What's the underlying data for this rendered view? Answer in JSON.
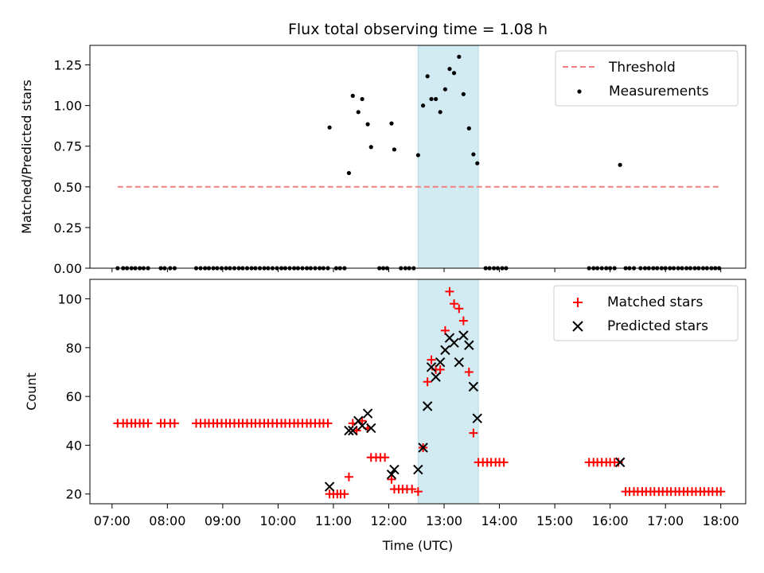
{
  "chart_data": [
    {
      "type": "scatter",
      "title": "Flux total observing time = 1.08 h",
      "xlabel": "",
      "ylabel": "Matched/Predicted stars",
      "ylim": [
        0,
        1.37
      ],
      "yticks": [
        0.0,
        0.25,
        0.5,
        0.75,
        1.0,
        1.25
      ],
      "ytick_labels": [
        "0.00",
        "0.25",
        "0.50",
        "0.75",
        "1.00",
        "1.25"
      ],
      "threshold": {
        "name": "Threshold",
        "value": 0.5,
        "x_range": [
          7.1,
          18.0
        ],
        "color": "#f08080"
      },
      "shaded_interval": {
        "x_range": [
          12.53,
          13.62
        ],
        "color": "#add8e6"
      },
      "legend": {
        "placement": "top-right",
        "entries": [
          "Threshold",
          "Measurements"
        ]
      },
      "series": [
        {
          "name": "Measurements",
          "color": "#000000",
          "points": [
            [
              7.1,
              0
            ],
            [
              7.2,
              0
            ],
            [
              7.27,
              0
            ],
            [
              7.35,
              0
            ],
            [
              7.42,
              0
            ],
            [
              7.5,
              0
            ],
            [
              7.57,
              0
            ],
            [
              7.65,
              0
            ],
            [
              7.88,
              0
            ],
            [
              7.95,
              0
            ],
            [
              8.05,
              0
            ],
            [
              8.13,
              0
            ],
            [
              8.52,
              0
            ],
            [
              8.6,
              0
            ],
            [
              8.68,
              0
            ],
            [
              8.75,
              0
            ],
            [
              8.83,
              0
            ],
            [
              8.9,
              0
            ],
            [
              8.98,
              0
            ],
            [
              9.06,
              0
            ],
            [
              9.13,
              0
            ],
            [
              9.21,
              0
            ],
            [
              9.29,
              0
            ],
            [
              9.36,
              0
            ],
            [
              9.44,
              0
            ],
            [
              9.52,
              0
            ],
            [
              9.59,
              0
            ],
            [
              9.67,
              0
            ],
            [
              9.75,
              0
            ],
            [
              9.82,
              0
            ],
            [
              9.9,
              0
            ],
            [
              9.98,
              0
            ],
            [
              10.06,
              0
            ],
            [
              10.13,
              0
            ],
            [
              10.21,
              0
            ],
            [
              10.29,
              0
            ],
            [
              10.36,
              0
            ],
            [
              10.44,
              0
            ],
            [
              10.52,
              0
            ],
            [
              10.59,
              0
            ],
            [
              10.67,
              0
            ],
            [
              10.75,
              0
            ],
            [
              10.82,
              0
            ],
            [
              10.9,
              0
            ],
            [
              11.05,
              0
            ],
            [
              11.12,
              0
            ],
            [
              11.2,
              0
            ],
            [
              11.83,
              0
            ],
            [
              11.9,
              0
            ],
            [
              11.97,
              0
            ],
            [
              12.22,
              0
            ],
            [
              12.3,
              0
            ],
            [
              12.37,
              0
            ],
            [
              12.45,
              0
            ],
            [
              10.93,
              0.865
            ],
            [
              11.28,
              0.585
            ],
            [
              11.35,
              1.06
            ],
            [
              11.45,
              0.96
            ],
            [
              11.52,
              1.04
            ],
            [
              11.62,
              0.885
            ],
            [
              11.68,
              0.745
            ],
            [
              12.05,
              0.89
            ],
            [
              12.1,
              0.73
            ],
            [
              12.53,
              0.695
            ],
            [
              12.62,
              1.0
            ],
            [
              12.7,
              1.18
            ],
            [
              12.77,
              1.04
            ],
            [
              12.85,
              1.04
            ],
            [
              12.93,
              0.96
            ],
            [
              13.02,
              1.1
            ],
            [
              13.1,
              1.225
            ],
            [
              13.18,
              1.2
            ],
            [
              13.27,
              1.3
            ],
            [
              13.35,
              1.07
            ],
            [
              13.45,
              0.86
            ],
            [
              13.53,
              0.7
            ],
            [
              13.6,
              0.645
            ],
            [
              13.75,
              0
            ],
            [
              13.82,
              0
            ],
            [
              13.9,
              0
            ],
            [
              13.97,
              0
            ],
            [
              14.05,
              0
            ],
            [
              14.12,
              0
            ],
            [
              15.62,
              0
            ],
            [
              15.7,
              0
            ],
            [
              15.77,
              0
            ],
            [
              15.85,
              0
            ],
            [
              15.93,
              0
            ],
            [
              16.0,
              0
            ],
            [
              16.08,
              0
            ],
            [
              16.18,
              0.635
            ],
            [
              16.28,
              0
            ],
            [
              16.35,
              0
            ],
            [
              16.43,
              0
            ],
            [
              16.55,
              0
            ],
            [
              16.63,
              0
            ],
            [
              16.7,
              0
            ],
            [
              16.78,
              0
            ],
            [
              16.85,
              0
            ],
            [
              16.93,
              0
            ],
            [
              17.0,
              0
            ],
            [
              17.08,
              0
            ],
            [
              17.15,
              0
            ],
            [
              17.23,
              0
            ],
            [
              17.3,
              0
            ],
            [
              17.38,
              0
            ],
            [
              17.45,
              0
            ],
            [
              17.53,
              0
            ],
            [
              17.6,
              0
            ],
            [
              17.68,
              0
            ],
            [
              17.75,
              0
            ],
            [
              17.83,
              0
            ],
            [
              17.9,
              0
            ],
            [
              17.97,
              0
            ]
          ]
        }
      ]
    },
    {
      "type": "scatter",
      "title": "",
      "xlabel": "Time (UTC)",
      "ylabel": "Count",
      "ylim": [
        16,
        108
      ],
      "yticks": [
        20,
        40,
        60,
        80,
        100
      ],
      "ytick_labels": [
        "20",
        "40",
        "60",
        "80",
        "100"
      ],
      "shaded_interval": {
        "x_range": [
          12.53,
          13.62
        ],
        "color": "#add8e6"
      },
      "legend": {
        "placement": "top-right",
        "entries": [
          "Matched stars",
          "Predicted stars"
        ]
      },
      "x_axis": {
        "xlim": [
          6.6,
          18.45
        ],
        "ticks": [
          7,
          8,
          9,
          10,
          11,
          12,
          13,
          14,
          15,
          16,
          17,
          18
        ],
        "tick_labels": [
          "07:00",
          "08:00",
          "09:00",
          "10:00",
          "11:00",
          "12:00",
          "13:00",
          "14:00",
          "15:00",
          "16:00",
          "17:00",
          "18:00"
        ]
      },
      "series": [
        {
          "name": "Matched stars",
          "marker": "plus",
          "color": "#ff0000",
          "points": [
            [
              7.1,
              49
            ],
            [
              7.2,
              49
            ],
            [
              7.27,
              49
            ],
            [
              7.35,
              49
            ],
            [
              7.42,
              49
            ],
            [
              7.5,
              49
            ],
            [
              7.57,
              49
            ],
            [
              7.65,
              49
            ],
            [
              7.88,
              49
            ],
            [
              7.95,
              49
            ],
            [
              8.05,
              49
            ],
            [
              8.13,
              49
            ],
            [
              8.52,
              49
            ],
            [
              8.6,
              49
            ],
            [
              8.68,
              49
            ],
            [
              8.75,
              49
            ],
            [
              8.83,
              49
            ],
            [
              8.9,
              49
            ],
            [
              8.98,
              49
            ],
            [
              9.06,
              49
            ],
            [
              9.13,
              49
            ],
            [
              9.21,
              49
            ],
            [
              9.29,
              49
            ],
            [
              9.36,
              49
            ],
            [
              9.44,
              49
            ],
            [
              9.52,
              49
            ],
            [
              9.59,
              49
            ],
            [
              9.67,
              49
            ],
            [
              9.75,
              49
            ],
            [
              9.82,
              49
            ],
            [
              9.9,
              49
            ],
            [
              9.98,
              49
            ],
            [
              10.06,
              49
            ],
            [
              10.13,
              49
            ],
            [
              10.21,
              49
            ],
            [
              10.29,
              49
            ],
            [
              10.36,
              49
            ],
            [
              10.44,
              49
            ],
            [
              10.52,
              49
            ],
            [
              10.59,
              49
            ],
            [
              10.67,
              49
            ],
            [
              10.75,
              49
            ],
            [
              10.82,
              49
            ],
            [
              10.9,
              49
            ],
            [
              10.93,
              20
            ],
            [
              11.0,
              20
            ],
            [
              11.07,
              20
            ],
            [
              11.13,
              20
            ],
            [
              11.2,
              20
            ],
            [
              11.28,
              27
            ],
            [
              11.35,
              49
            ],
            [
              11.42,
              46
            ],
            [
              11.52,
              50
            ],
            [
              11.62,
              47
            ],
            [
              11.68,
              35
            ],
            [
              11.77,
              35
            ],
            [
              11.85,
              35
            ],
            [
              11.93,
              35
            ],
            [
              12.05,
              26
            ],
            [
              12.1,
              22
            ],
            [
              12.18,
              22
            ],
            [
              12.25,
              22
            ],
            [
              12.33,
              22
            ],
            [
              12.42,
              22
            ],
            [
              12.53,
              21
            ],
            [
              12.62,
              39
            ],
            [
              12.7,
              66
            ],
            [
              12.77,
              75
            ],
            [
              12.85,
              71
            ],
            [
              12.93,
              71
            ],
            [
              13.02,
              87
            ],
            [
              13.1,
              103
            ],
            [
              13.18,
              98
            ],
            [
              13.27,
              96
            ],
            [
              13.35,
              91
            ],
            [
              13.45,
              70
            ],
            [
              13.53,
              45
            ],
            [
              13.62,
              33
            ],
            [
              13.7,
              33
            ],
            [
              13.78,
              33
            ],
            [
              13.85,
              33
            ],
            [
              13.93,
              33
            ],
            [
              14.0,
              33
            ],
            [
              14.08,
              33
            ],
            [
              15.62,
              33
            ],
            [
              15.7,
              33
            ],
            [
              15.77,
              33
            ],
            [
              15.85,
              33
            ],
            [
              15.93,
              33
            ],
            [
              16.0,
              33
            ],
            [
              16.08,
              33
            ],
            [
              16.15,
              33
            ],
            [
              16.28,
              21
            ],
            [
              16.35,
              21
            ],
            [
              16.43,
              21
            ],
            [
              16.5,
              21
            ],
            [
              16.58,
              21
            ],
            [
              16.65,
              21
            ],
            [
              16.73,
              21
            ],
            [
              16.8,
              21
            ],
            [
              16.88,
              21
            ],
            [
              16.95,
              21
            ],
            [
              17.03,
              21
            ],
            [
              17.1,
              21
            ],
            [
              17.18,
              21
            ],
            [
              17.25,
              21
            ],
            [
              17.33,
              21
            ],
            [
              17.4,
              21
            ],
            [
              17.48,
              21
            ],
            [
              17.55,
              21
            ],
            [
              17.63,
              21
            ],
            [
              17.7,
              21
            ],
            [
              17.78,
              21
            ],
            [
              17.85,
              21
            ],
            [
              17.93,
              21
            ],
            [
              18.0,
              21
            ]
          ]
        },
        {
          "name": "Predicted stars",
          "marker": "x",
          "color": "#000000",
          "points": [
            [
              10.93,
              23
            ],
            [
              11.28,
              46
            ],
            [
              11.35,
              46
            ],
            [
              11.45,
              50
            ],
            [
              11.52,
              48
            ],
            [
              11.62,
              53
            ],
            [
              11.68,
              47
            ],
            [
              12.05,
              28
            ],
            [
              12.1,
              30
            ],
            [
              12.53,
              30
            ],
            [
              12.62,
              39
            ],
            [
              12.7,
              56
            ],
            [
              12.77,
              72
            ],
            [
              12.85,
              68
            ],
            [
              12.93,
              74
            ],
            [
              13.02,
              79
            ],
            [
              13.1,
              84
            ],
            [
              13.18,
              82
            ],
            [
              13.27,
              74
            ],
            [
              13.35,
              85
            ],
            [
              13.45,
              81
            ],
            [
              13.53,
              64
            ],
            [
              13.6,
              51
            ],
            [
              16.18,
              33
            ]
          ]
        }
      ]
    }
  ]
}
